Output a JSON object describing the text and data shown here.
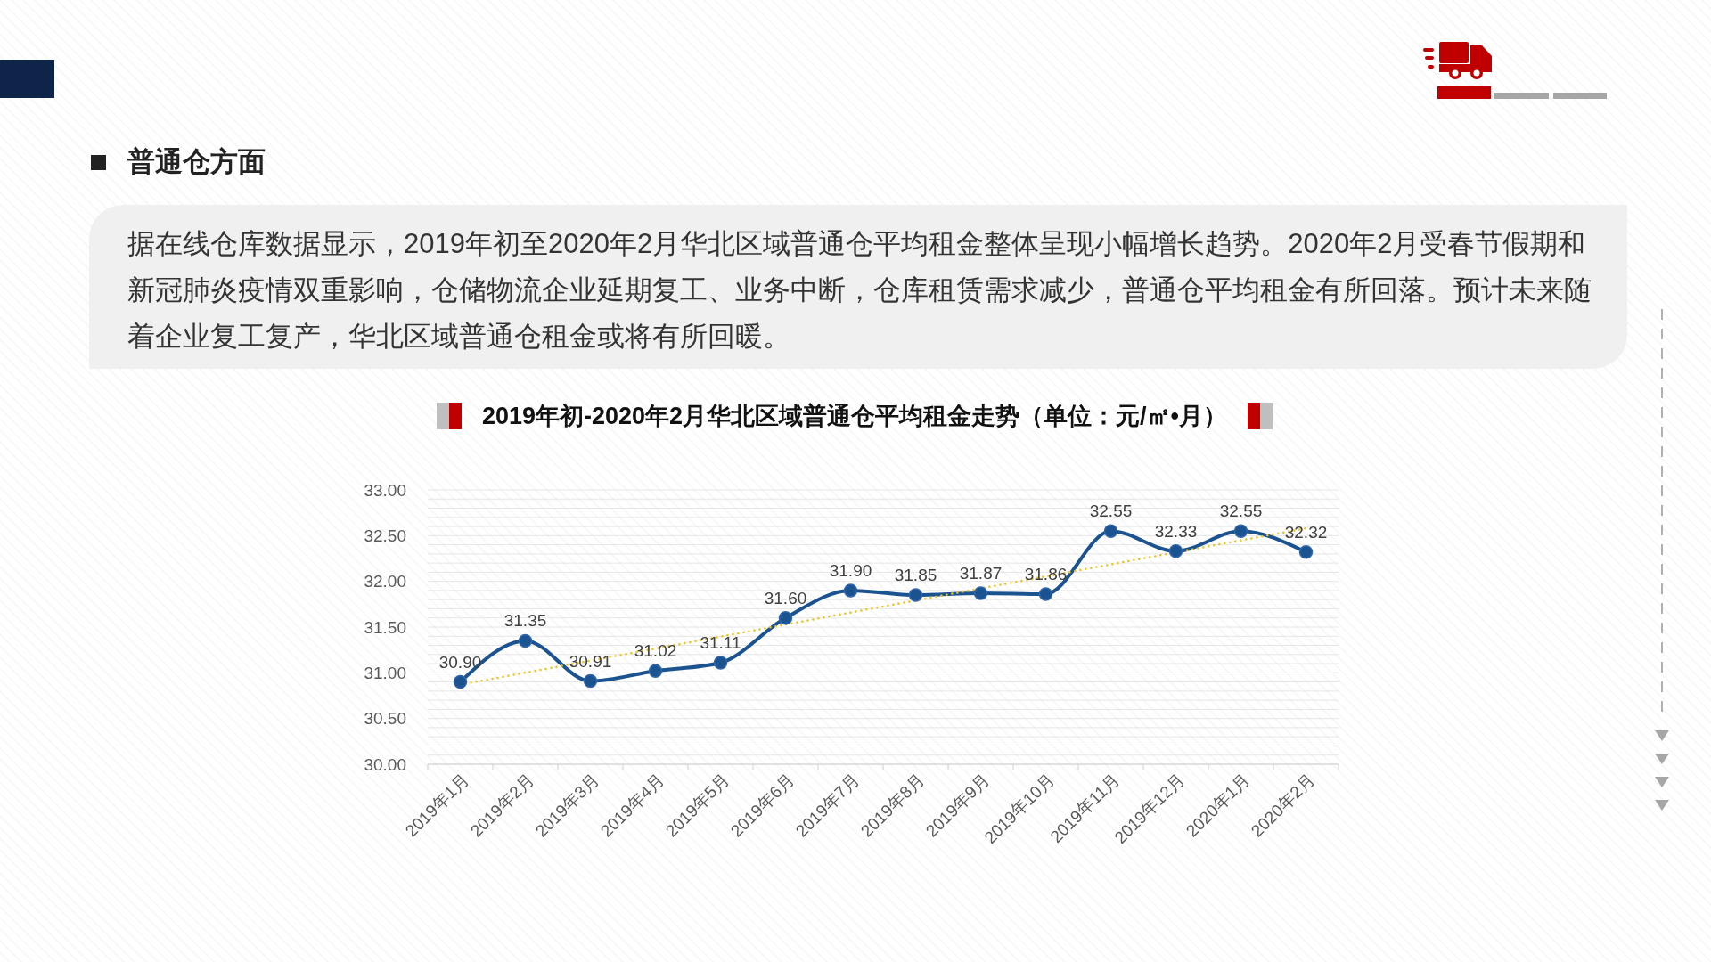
{
  "chart_data": {
    "type": "line",
    "title": "2019年初-2020年2月华北区域普通仓平均租金走势（单位：元/㎡•月）",
    "annotations": [
      "普通仓方面",
      "据在线仓库数据显示，2019年初至2020年2月华北区域普通仓平均租金整体呈现小幅增长趋势。2020年2月受春节假期和新冠肺炎疫情双重影响，仓储物流企业延期复工、业务中断，仓库租赁需求减少，普通仓平均租金有所回落。预计未来随着企业复工复产，华北区域普通仓租金或将有所回暖。"
    ],
    "categories": [
      "2019年1月",
      "2019年2月",
      "2019年3月",
      "2019年4月",
      "2019年5月",
      "2019年6月",
      "2019年7月",
      "2019年8月",
      "2019年9月",
      "2019年10月",
      "2019年11月",
      "2019年12月",
      "2020年1月",
      "2020年2月"
    ],
    "series": [
      {
        "color": "#1b5391",
        "values": [
          30.9,
          31.35,
          30.91,
          31.02,
          31.11,
          31.6,
          31.9,
          31.85,
          31.87,
          31.86,
          32.55,
          32.33,
          32.55,
          32.32
        ],
        "value_labels": [
          "30.90",
          "31.35",
          "30.91",
          "31.02",
          "31.11",
          "31.60",
          "31.90",
          "31.85",
          "31.87",
          "31.86",
          "32.55",
          "32.33",
          "32.55",
          "32.32"
        ]
      },
      {
        "type": "line",
        "x": [
          "2019年1月",
          "2020年2月"
        ],
        "values": [
          30.87,
          32.58
        ],
        "color": "#f0c419",
        "line_style": "dotted",
        "marker": "none"
      }
    ],
    "ylim": [
      30,
      33
    ],
    "yticks": [
      {
        "value": 30,
        "label": "30.00"
      },
      {
        "value": 30.1,
        "label": null
      },
      {
        "value": 30.2,
        "label": null
      },
      {
        "value": 30.3,
        "label": null
      },
      {
        "value": 30.4,
        "label": null
      },
      {
        "value": 30.5,
        "label": "30.50"
      },
      {
        "value": 30.6,
        "label": null
      },
      {
        "value": 30.7,
        "label": null
      },
      {
        "value": 30.8,
        "label": null
      },
      {
        "value": 30.9,
        "label": null
      },
      {
        "value": 31,
        "label": "31.00"
      },
      {
        "value": 31.1,
        "label": null
      },
      {
        "value": 31.2,
        "label": null
      },
      {
        "value": 31.3,
        "label": null
      },
      {
        "value": 31.4,
        "label": null
      },
      {
        "value": 31.5,
        "label": "31.50"
      },
      {
        "value": 31.6,
        "label": null
      },
      {
        "value": 31.7,
        "label": null
      },
      {
        "value": 31.8,
        "label": null
      },
      {
        "value": 31.9,
        "label": null
      },
      {
        "value": 32,
        "label": "32.00"
      },
      {
        "value": 32.1,
        "label": null
      },
      {
        "value": 32.2,
        "label": null
      },
      {
        "value": 32.3,
        "label": null
      },
      {
        "value": 32.4,
        "label": null
      },
      {
        "value": 32.5,
        "label": "32.50"
      },
      {
        "value": 32.6,
        "label": null
      },
      {
        "value": 32.7,
        "label": null
      },
      {
        "value": 32.8,
        "label": null
      },
      {
        "value": 32.9,
        "label": null
      },
      {
        "value": 33,
        "label": "33.00"
      }
    ],
    "grid": "y",
    "marker": "circle",
    "line_style": "solid"
  }
}
